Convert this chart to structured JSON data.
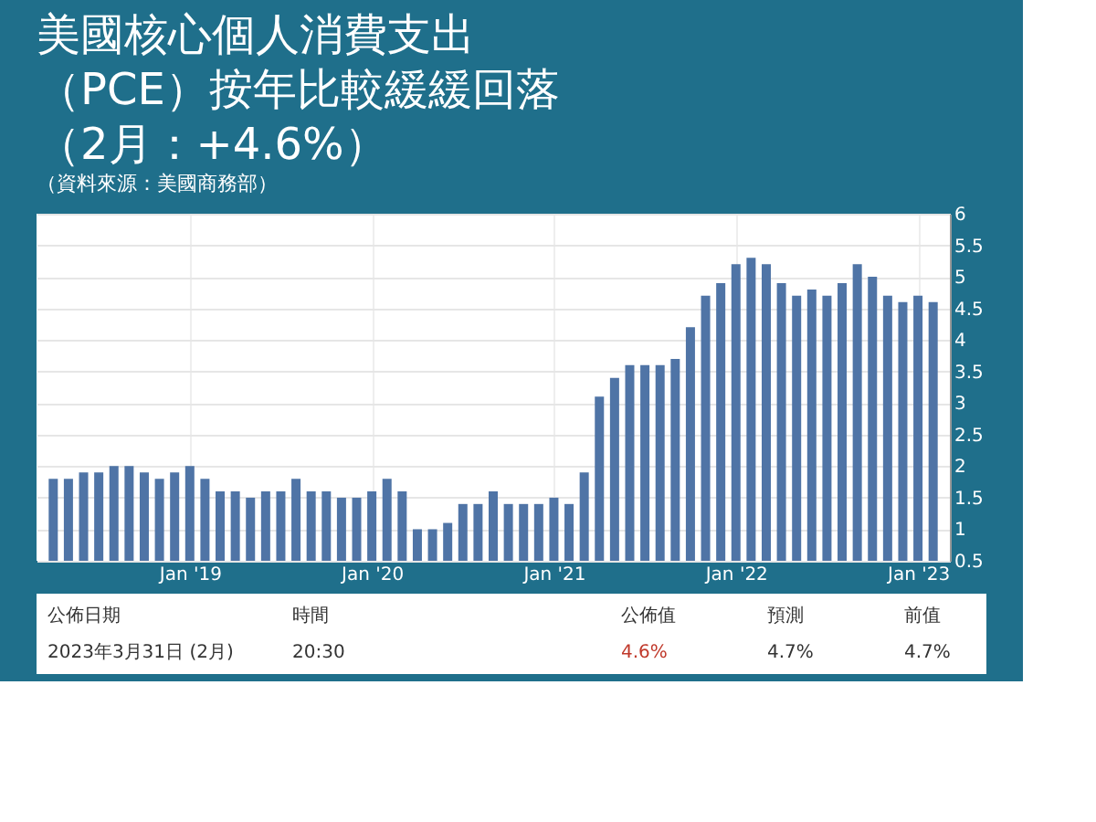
{
  "chart_data": {
    "type": "bar",
    "title": [
      "美國核心個人消費支出",
      "（PCE）按年比較緩緩回落",
      "（2月：+4.6%）"
    ],
    "annotations": [
      "（資料來源：美國商務部）",
      "公佈日期",
      "時間",
      "公佈值",
      "預測",
      "前值",
      "2023年3月31日 (2月)",
      "20:30",
      "4.6%",
      "4.7%",
      "4.7%"
    ],
    "categories": [
      null,
      null,
      null,
      null,
      null,
      null,
      null,
      null,
      null,
      "Jan '19",
      null,
      null,
      null,
      null,
      null,
      null,
      null,
      null,
      null,
      null,
      null,
      "Jan '20",
      null,
      null,
      null,
      null,
      null,
      null,
      null,
      null,
      null,
      null,
      null,
      "Jan '21",
      null,
      null,
      null,
      null,
      null,
      null,
      null,
      null,
      null,
      null,
      null,
      "Jan '22",
      null,
      null,
      null,
      null,
      null,
      null,
      null,
      null,
      null,
      null,
      null,
      "Jan '23",
      null
    ],
    "values": [
      1.8,
      1.8,
      1.9,
      1.9,
      2.0,
      2.0,
      1.9,
      1.8,
      1.9,
      2.0,
      1.8,
      1.6,
      1.6,
      1.5,
      1.6,
      1.6,
      1.8,
      1.6,
      1.6,
      1.5,
      1.5,
      1.6,
      1.8,
      1.6,
      1.0,
      1.0,
      1.1,
      1.4,
      1.4,
      1.6,
      1.4,
      1.4,
      1.4,
      1.5,
      1.4,
      1.9,
      3.1,
      3.4,
      3.6,
      3.6,
      3.6,
      3.7,
      4.2,
      4.7,
      4.9,
      5.2,
      5.3,
      5.2,
      4.9,
      4.7,
      4.8,
      4.7,
      4.9,
      5.2,
      5.0,
      4.7,
      4.6,
      4.7,
      4.6
    ],
    "color": "#4f74a6",
    "ylim": [
      0.5,
      6
    ],
    "yticks": [
      0.5,
      1,
      1.5,
      2,
      2.5,
      3,
      3.5,
      4,
      4.5,
      5,
      5.5,
      6
    ],
    "grid": true
  }
}
